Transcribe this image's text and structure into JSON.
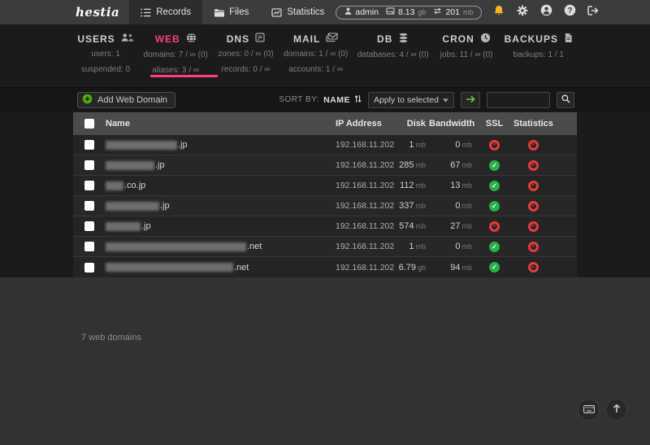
{
  "colors": {
    "accent_pink": "#ff3d81",
    "success_green": "#27b14a",
    "danger_red": "#e83a3a",
    "bell_gold": "#f2b52c",
    "add_green": "#4db00b"
  },
  "topbar": {
    "logo": "hestia",
    "tabs": [
      {
        "label": "Records"
      },
      {
        "label": "Files"
      },
      {
        "label": "Statistics"
      }
    ],
    "usage": {
      "user": "admin",
      "disk_value": "8.13",
      "disk_unit": "gb",
      "net_value": "201",
      "net_unit": "mb"
    }
  },
  "nav": {
    "sections": [
      {
        "label": "USERS",
        "stats": [
          "users: 1",
          "suspended: 0"
        ]
      },
      {
        "label": "WEB",
        "stats": [
          "domains: 7 / ∞ (0)",
          "aliases: 3 / ∞"
        ]
      },
      {
        "label": "DNS",
        "stats": [
          "zones: 0 / ∞ (0)",
          "records: 0 / ∞"
        ]
      },
      {
        "label": "MAIL",
        "stats": [
          "domains: 1 / ∞ (0)",
          "accounts: 1 / ∞"
        ]
      },
      {
        "label": "DB",
        "stats": [
          "databases: 4 / ∞ (0)"
        ]
      },
      {
        "label": "CRON",
        "stats": [
          "jobs: 11 / ∞ (0)"
        ]
      },
      {
        "label": "BACKUPS",
        "stats": [
          "backups: 1 / 1"
        ]
      }
    ]
  },
  "toolbar": {
    "add_label": "Add Web Domain",
    "sort_by_label": "SORT BY:",
    "sort_field": "NAME",
    "apply_label": "Apply to selected",
    "search_value": ""
  },
  "table": {
    "columns": [
      "Name",
      "IP Address",
      "Disk",
      "Bandwidth",
      "SSL",
      "Statistics"
    ],
    "rows": [
      {
        "redact_width": 88,
        "suffix": ".jp",
        "ip": "192.168.11.202",
        "disk": "1",
        "disk_unit": "mb",
        "bandwidth": "0",
        "bandwidth_unit": "mb",
        "ssl": "error",
        "statistics": "error"
      },
      {
        "redact_width": 60,
        "suffix": ".jp",
        "ip": "192.168.11.202",
        "disk": "285",
        "disk_unit": "mb",
        "bandwidth": "67",
        "bandwidth_unit": "mb",
        "ssl": "ok",
        "statistics": "error"
      },
      {
        "redact_width": 22,
        "suffix": ".co.jp",
        "ip": "192.168.11.202",
        "disk": "112",
        "disk_unit": "mb",
        "bandwidth": "13",
        "bandwidth_unit": "mb",
        "ssl": "ok",
        "statistics": "error"
      },
      {
        "redact_width": 66,
        "suffix": ".jp",
        "ip": "192.168.11.202",
        "disk": "337",
        "disk_unit": "mb",
        "bandwidth": "0",
        "bandwidth_unit": "mb",
        "ssl": "ok",
        "statistics": "error"
      },
      {
        "redact_width": 43,
        "suffix": ".jp",
        "ip": "192.168.11.202",
        "disk": "574",
        "disk_unit": "mb",
        "bandwidth": "27",
        "bandwidth_unit": "mb",
        "ssl": "error",
        "statistics": "error"
      },
      {
        "redact_width": 173,
        "suffix": ".net",
        "ip": "192.168.11.202",
        "disk": "1",
        "disk_unit": "mb",
        "bandwidth": "0",
        "bandwidth_unit": "mb",
        "ssl": "ok",
        "statistics": "error"
      },
      {
        "redact_width": 157,
        "suffix": ".net",
        "ip": "192.168.11.202",
        "disk": "6.79",
        "disk_unit": "gb",
        "bandwidth": "94",
        "bandwidth_unit": "mb",
        "ssl": "ok",
        "statistics": "error"
      }
    ]
  },
  "footer": {
    "summary": "7 web domains"
  }
}
